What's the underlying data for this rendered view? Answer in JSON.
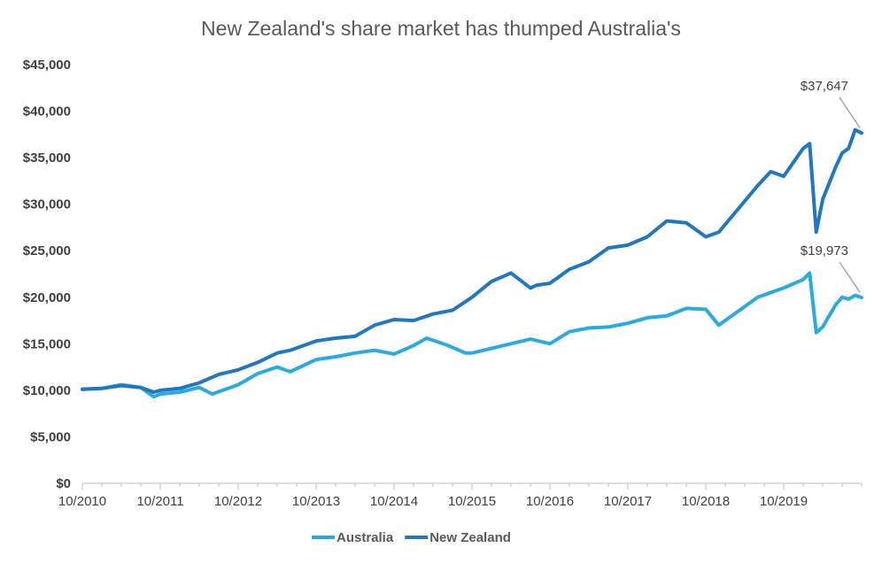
{
  "chart_data": {
    "type": "line",
    "title": "New Zealand's share market has thumped Australia's",
    "xlabel": "",
    "ylabel": "",
    "ylim": [
      0,
      45000
    ],
    "yticks": [
      0,
      5000,
      10000,
      15000,
      20000,
      25000,
      30000,
      35000,
      40000,
      45000
    ],
    "ytick_labels": [
      "$0",
      "$5,000",
      "$10,000",
      "$15,000",
      "$20,000",
      "$25,000",
      "$30,000",
      "$35,000",
      "$40,000",
      "$45,000"
    ],
    "xlim": [
      "2010-10",
      "2020-10"
    ],
    "xtick_labels": [
      "10/2010",
      "10/2011",
      "10/2012",
      "10/2013",
      "10/2014",
      "10/2015",
      "10/2016",
      "10/2017",
      "10/2018",
      "10/2019"
    ],
    "grid": false,
    "legend_position": "bottom",
    "series": [
      {
        "name": "Australia",
        "color": "#29abe2",
        "x": [
          "2010-10",
          "2011-01",
          "2011-04",
          "2011-07",
          "2011-09",
          "2011-10",
          "2012-01",
          "2012-04",
          "2012-06",
          "2012-10",
          "2013-01",
          "2013-04",
          "2013-06",
          "2013-10",
          "2014-01",
          "2014-04",
          "2014-07",
          "2014-10",
          "2015-01",
          "2015-03",
          "2015-06",
          "2015-09",
          "2015-10",
          "2016-01",
          "2016-04",
          "2016-07",
          "2016-10",
          "2017-01",
          "2017-04",
          "2017-07",
          "2017-10",
          "2018-01",
          "2018-04",
          "2018-07",
          "2018-10",
          "2018-12",
          "2019-03",
          "2019-06",
          "2019-10",
          "2020-01",
          "2020-02",
          "2020-03",
          "2020-04",
          "2020-06",
          "2020-07",
          "2020-08",
          "2020-09",
          "2020-10"
        ],
        "y": [
          10100,
          10200,
          10600,
          10300,
          9300,
          9600,
          9800,
          10300,
          9600,
          10600,
          11800,
          12500,
          12000,
          13300,
          13600,
          14000,
          14300,
          13900,
          14800,
          15600,
          14900,
          14000,
          14000,
          14500,
          15000,
          15500,
          15000,
          16300,
          16700,
          16800,
          17200,
          17800,
          18000,
          18800,
          18700,
          17000,
          18500,
          20000,
          21000,
          21900,
          22600,
          16200,
          16800,
          19200,
          20000,
          19800,
          20200,
          19973
        ]
      },
      {
        "name": "New Zealand",
        "color": "#1f78c1",
        "x": [
          "2010-10",
          "2011-01",
          "2011-04",
          "2011-07",
          "2011-09",
          "2011-10",
          "2012-01",
          "2012-04",
          "2012-07",
          "2012-10",
          "2013-01",
          "2013-04",
          "2013-06",
          "2013-10",
          "2014-01",
          "2014-04",
          "2014-07",
          "2014-10",
          "2015-01",
          "2015-04",
          "2015-07",
          "2015-10",
          "2016-01",
          "2016-04",
          "2016-07",
          "2016-08",
          "2016-10",
          "2017-01",
          "2017-04",
          "2017-07",
          "2017-10",
          "2018-01",
          "2018-04",
          "2018-07",
          "2018-10",
          "2018-12",
          "2019-03",
          "2019-06",
          "2019-08",
          "2019-10",
          "2020-01",
          "2020-02",
          "2020-03",
          "2020-04",
          "2020-06",
          "2020-07",
          "2020-08",
          "2020-09",
          "2020-10"
        ],
        "y": [
          10100,
          10200,
          10500,
          10300,
          9800,
          10000,
          10200,
          10800,
          11700,
          12200,
          13000,
          14000,
          14300,
          15300,
          15600,
          15800,
          17000,
          17600,
          17500,
          18200,
          18600,
          20000,
          21700,
          22600,
          21000,
          21300,
          21500,
          23000,
          23800,
          25300,
          25600,
          26500,
          28200,
          28000,
          26500,
          27000,
          29500,
          32000,
          33500,
          33000,
          36000,
          36500,
          27000,
          30500,
          34000,
          35500,
          36000,
          38000,
          37647
        ]
      }
    ],
    "annotations": [
      {
        "text": "$37,647",
        "series": "New Zealand"
      },
      {
        "text": "$19,973",
        "series": "Australia"
      }
    ]
  }
}
